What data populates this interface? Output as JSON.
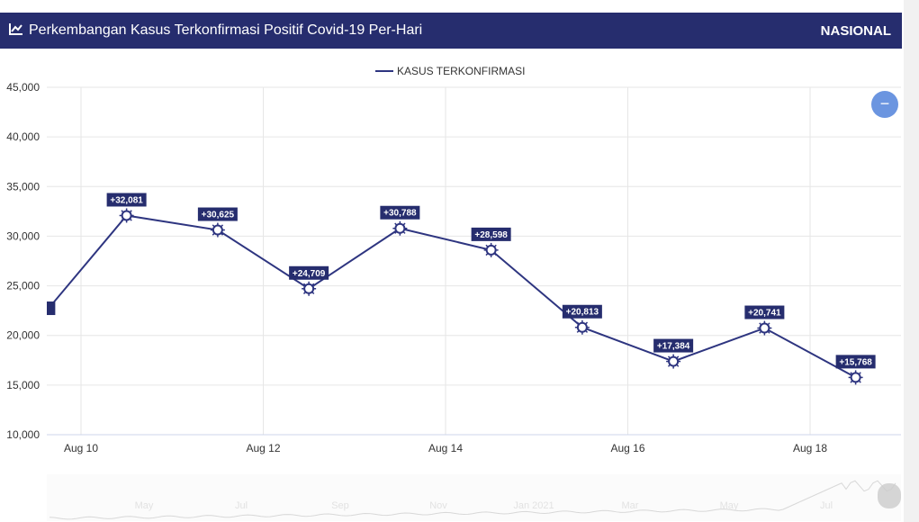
{
  "header": {
    "title": "Perkembangan Kasus Terkonfirmasi Positif Covid-19 Per-Hari",
    "region": "NASIONAL"
  },
  "zoom_button": {
    "label": "−"
  },
  "colors": {
    "header": "#262d6e",
    "series": "#2e3580",
    "zoom": "#6b95e0"
  },
  "chart_data": {
    "type": "line",
    "title": "Perkembangan Kasus Terkonfirmasi Positif Covid-19 Per-Hari",
    "legend": [
      "KASUS TERKONFIRMASI"
    ],
    "legend_position": "top-center",
    "ylim": [
      10000,
      45000
    ],
    "yticks": [
      "10,000",
      "15,000",
      "20,000",
      "25,000",
      "30,000",
      "35,000",
      "40,000",
      "45,000"
    ],
    "xticks": [
      "Aug 10",
      "Aug 12",
      "Aug 14",
      "Aug 16",
      "Aug 18"
    ],
    "series": [
      {
        "name": "KASUS TERKONFIRMASI",
        "x": [
          9.5,
          10.5,
          11.5,
          12.5,
          13.5,
          14.5,
          15.5,
          16.5,
          17.5,
          18.5
        ],
        "values": [
          21150,
          32081,
          30625,
          24709,
          30788,
          28598,
          20813,
          17384,
          20741,
          15768
        ],
        "labels": [
          "",
          "+32,081",
          "+30,625",
          "+24,709",
          "+30,788",
          "+28,598",
          "+20,813",
          "+17,384",
          "+20,741",
          "+15,768"
        ]
      }
    ],
    "navigator_labels": [
      "May",
      "Jul",
      "Sep",
      "Nov",
      "Jan 2021",
      "Mar",
      "May",
      "Jul"
    ]
  }
}
